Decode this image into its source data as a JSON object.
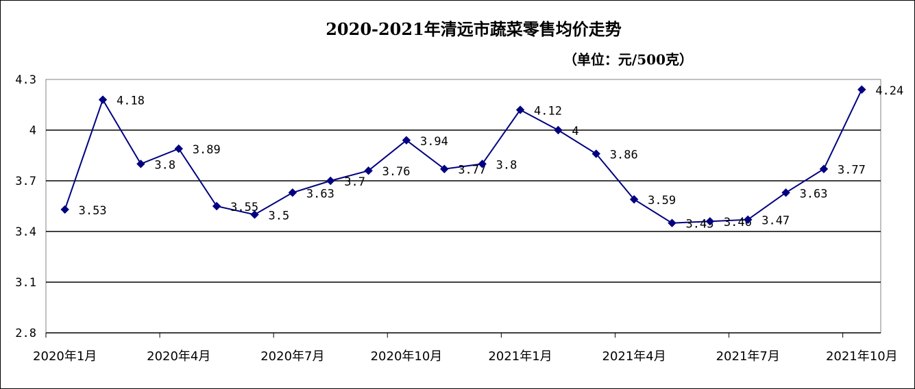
{
  "chart_data": {
    "type": "line",
    "title": "2020-2021年清远市蔬菜零售均价走势",
    "subtitle": "（单位：元/500克）",
    "xlabel": "",
    "ylabel": "",
    "ylim": [
      2.8,
      4.3
    ],
    "yticks": [
      "2.8",
      "3.1",
      "3.4",
      "3.7",
      "4",
      "4.3"
    ],
    "grid": true,
    "legend": "none",
    "colors": {
      "line": "#000080",
      "marker": "#000080",
      "grid": "#000000"
    },
    "x_tick_labels": [
      "2020年1月",
      "2020年4月",
      "2020年7月",
      "2020年10月",
      "2021年1月",
      "2021年4月",
      "2021年7月",
      "2021年10月"
    ],
    "x_tick_indices": [
      0,
      3,
      6,
      9,
      12,
      15,
      18,
      21
    ],
    "series": [
      {
        "values": [
          3.53,
          4.18,
          3.8,
          3.89,
          3.55,
          3.5,
          3.63,
          3.7,
          3.76,
          3.94,
          3.77,
          3.8,
          4.12,
          4,
          3.86,
          3.59,
          3.45,
          3.46,
          3.47,
          3.63,
          3.77,
          4.24
        ],
        "labels": [
          "3.53",
          "4.18",
          "3.8",
          "3.89",
          "3.55",
          "3.5",
          "3.63",
          "3.7",
          "3.76",
          "3.94",
          "3.77",
          "3.8",
          "4.12",
          "4",
          "3.86",
          "3.59",
          "3.45",
          "3.46",
          "3.47",
          "3.63",
          "3.77",
          "4.24"
        ]
      }
    ]
  }
}
